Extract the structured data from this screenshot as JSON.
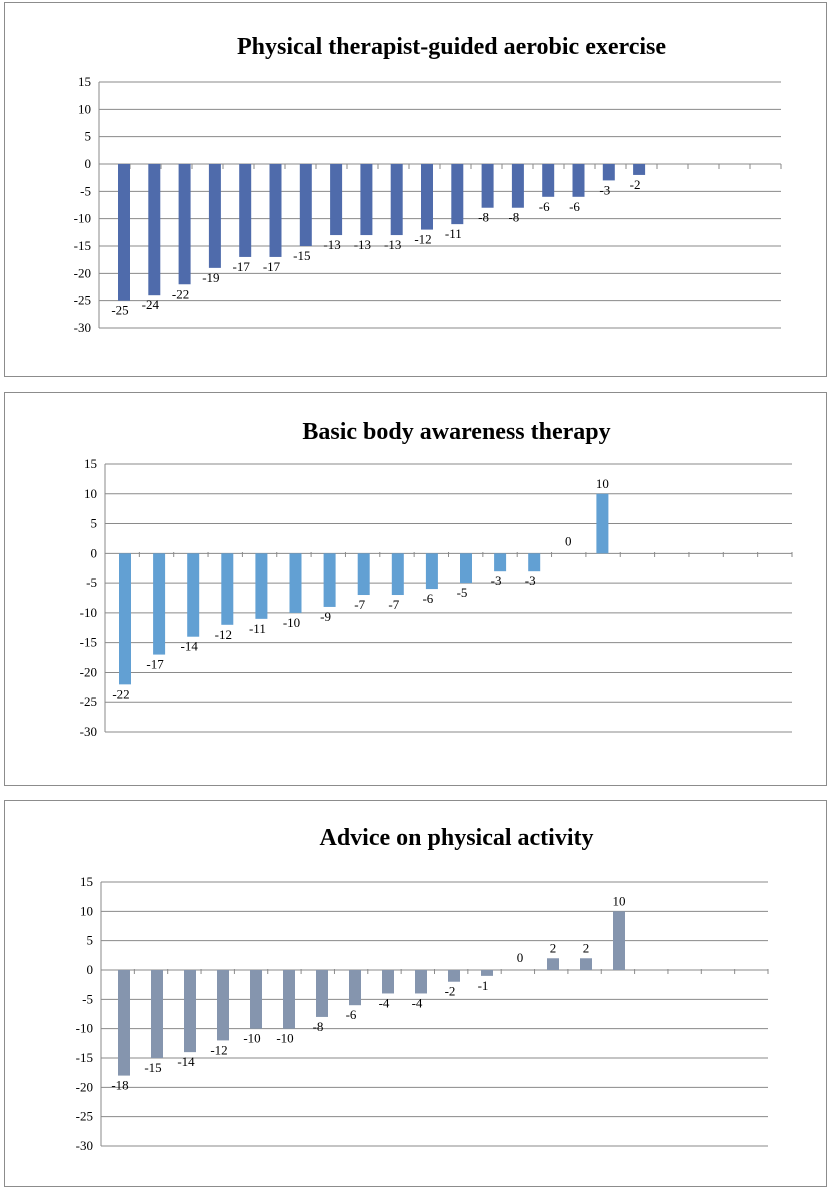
{
  "chart_data": [
    {
      "type": "bar",
      "title": "Physical therapist-guided aerobic exercise",
      "values": [
        -25,
        -24,
        -22,
        -19,
        -17,
        -17,
        -15,
        -13,
        -13,
        -13,
        -12,
        -11,
        -8,
        -8,
        -6,
        -6,
        -3,
        -2
      ],
      "ylim": [
        -30,
        15
      ],
      "yticks": [
        15,
        10,
        5,
        0,
        -5,
        -10,
        -15,
        -20,
        -25,
        -30
      ],
      "grid": true,
      "legend": "none",
      "color": "#4f6bab"
    },
    {
      "type": "bar",
      "title": "Basic body awareness therapy",
      "values": [
        -22,
        -17,
        -14,
        -12,
        -11,
        -10,
        -9,
        -7,
        -7,
        -6,
        -5,
        -3,
        -3,
        0,
        10
      ],
      "ylim": [
        -30,
        15
      ],
      "yticks": [
        15,
        10,
        5,
        0,
        -5,
        -10,
        -15,
        -20,
        -25,
        -30
      ],
      "grid": true,
      "legend": "none",
      "color": "#62a0d3"
    },
    {
      "type": "bar",
      "title": "Advice on physical activity",
      "values": [
        -18,
        -15,
        -14,
        -12,
        -10,
        -10,
        -8,
        -6,
        -4,
        -4,
        -2,
        -1,
        0,
        2,
        2,
        10
      ],
      "ylim": [
        -30,
        15
      ],
      "yticks": [
        15,
        10,
        5,
        0,
        -5,
        -10,
        -15,
        -20,
        -25,
        -30
      ],
      "grid": true,
      "legend": "none",
      "color": "#8595ae"
    }
  ]
}
